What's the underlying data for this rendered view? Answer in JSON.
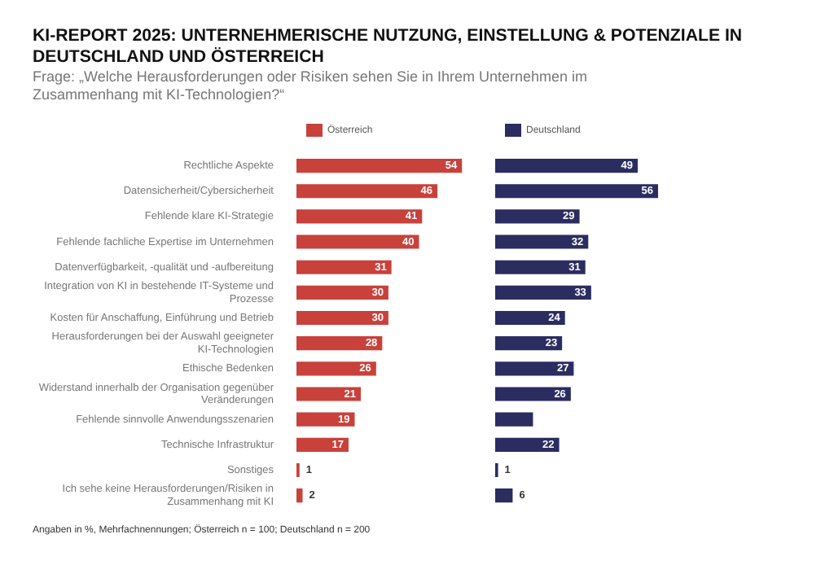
{
  "chart_data": [
    {
      "type": "bar",
      "orientation": "horizontal",
      "title": "KI-REPORT 2025: UNTERNEHMERISCHE NUTZUNG, EINSTELLUNG & POTENZIALE IN DEUTSCHLAND UND ÖSTERREICH",
      "subtitle": "Frage: „Welche Herausforderungen oder Risiken sehen Sie in Ihrem Unternehmen im Zusammenhang mit KI-Technologien?“",
      "annotations": [
        "Angaben in %, Mehrfachnennungen; Österreich n = 100; Deutschland n = 200"
      ],
      "categories": [
        "Rechtliche Aspekte",
        "Datensicherheit/Cybersicherheit",
        "Fehlende klare KI-Strategie",
        "Fehlende fachliche Expertise im Unternehmen",
        "Datenverfügbarkeit, -qualität und -aufbereitung",
        "Integration von KI in bestehende IT-Systeme und Prozesse",
        "Kosten für Anschaffung, Einführung und Betrieb",
        "Herausforderungen bei der Auswahl geeigneter KI-Technologien",
        "Ethische Bedenken",
        "Widerstand innerhalb der Organisation gegenüber Veränderungen",
        "Fehlende sinnvolle Anwendungsszenarien",
        "Technische Infrastruktur",
        "Sonstiges",
        "Ich sehe keine Herausforderungen/Risiken in Zusammenhang mit KI"
      ],
      "series": [
        {
          "name": "Österreich",
          "color": "#c8413b",
          "values": [
            54,
            46,
            41,
            40,
            31,
            30,
            30,
            28,
            26,
            21,
            19,
            17,
            1,
            2
          ]
        }
      ],
      "data_labels": true,
      "legend": "top left",
      "tick_labels": "y"
    },
    {
      "type": "bar",
      "orientation": "horizontal",
      "categories": [
        null,
        null,
        null,
        null,
        null,
        null,
        null,
        null,
        null,
        null,
        null,
        null,
        null,
        null
      ],
      "series": [
        {
          "name": "Deutschland",
          "color": "#2b2c60",
          "values": [
            49,
            56,
            29,
            32,
            31,
            33,
            24,
            23,
            27,
            26,
            13,
            22,
            1,
            6
          ],
          "value_labels": [
            "49",
            "56",
            "29",
            "32",
            "31",
            "33",
            "24",
            "23",
            "27",
            "26",
            null,
            "22",
            "1",
            "6"
          ]
        }
      ],
      "legend": "top left",
      "tick_labels": false
    }
  ]
}
